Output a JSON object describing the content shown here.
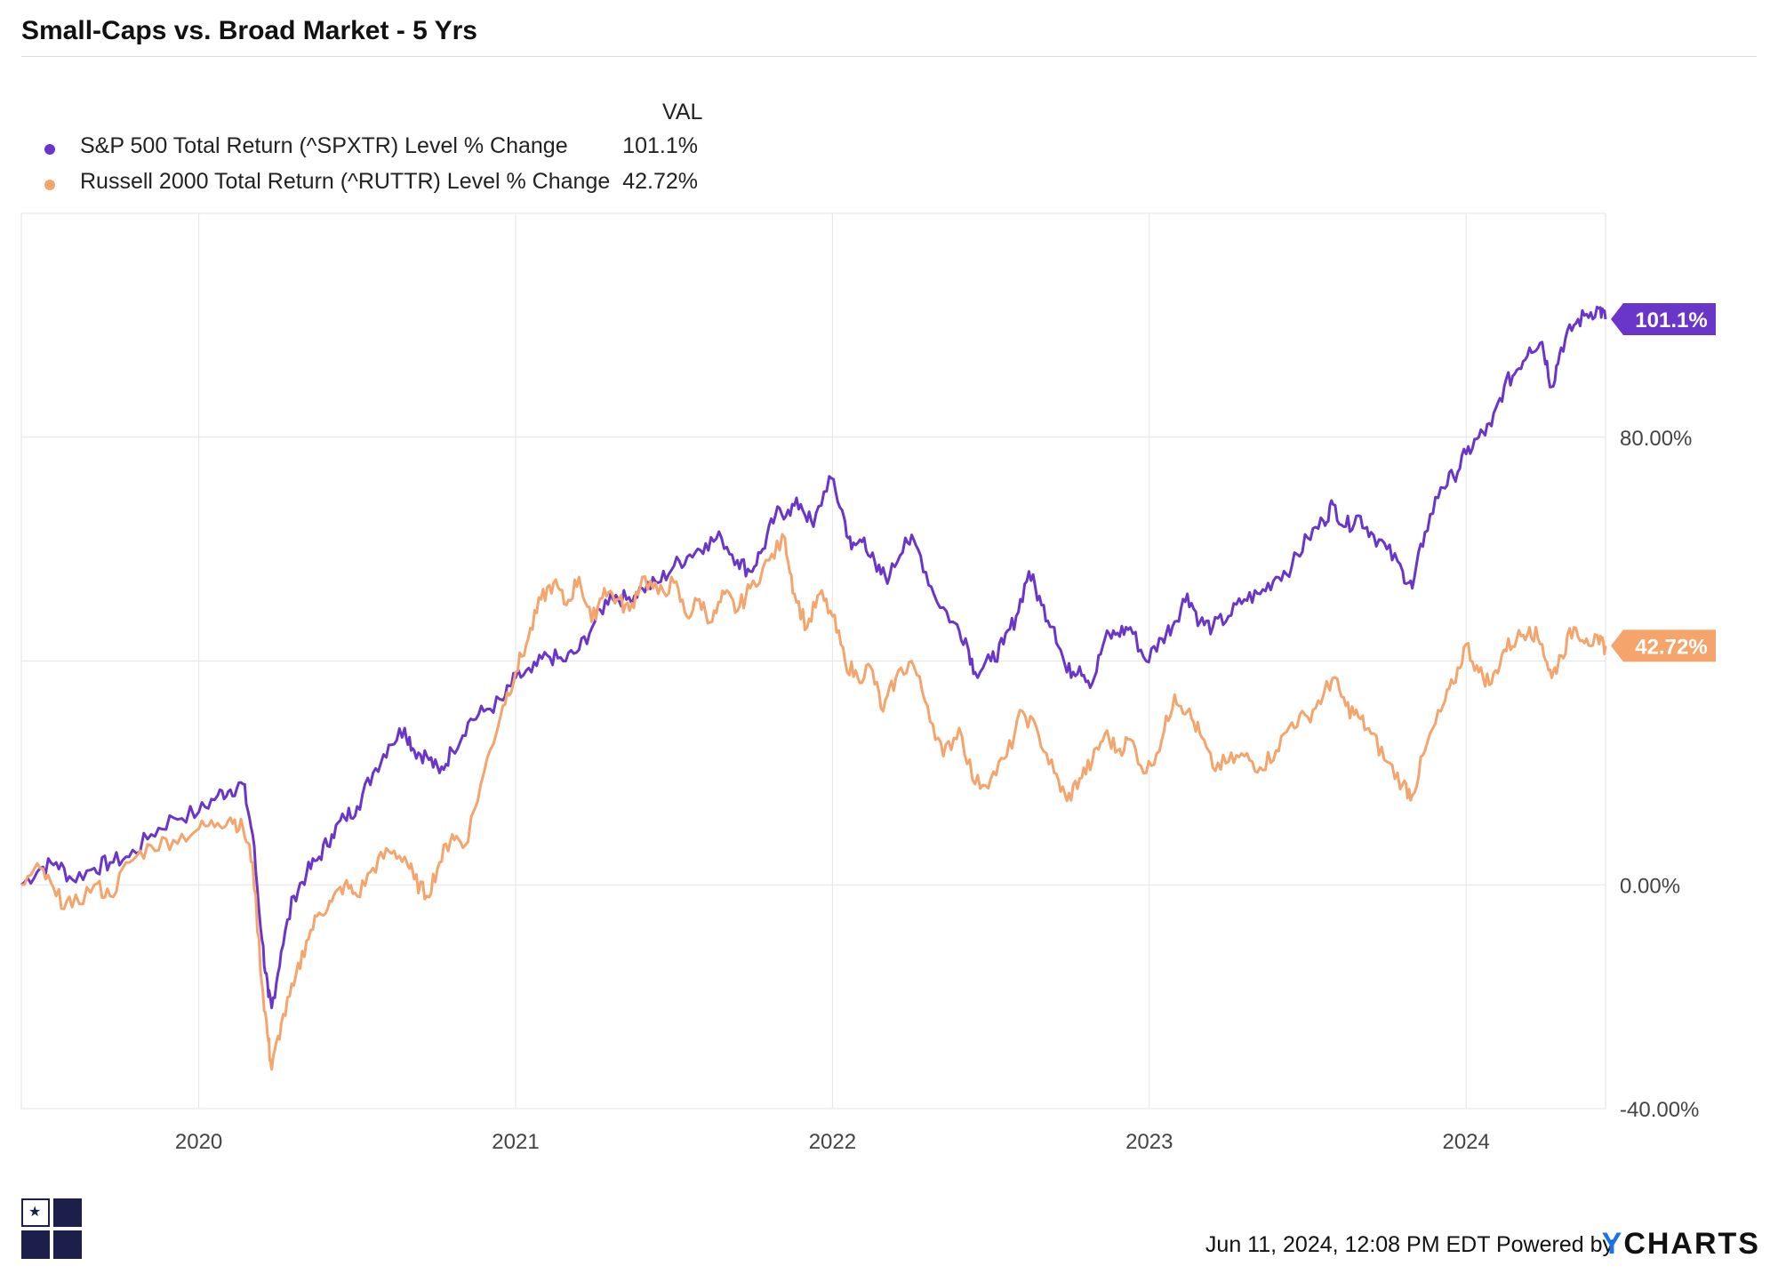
{
  "title": "Small-Caps vs. Broad Market - 5 Yrs",
  "legend": {
    "header": "VAL",
    "rows": [
      {
        "label": "S&P 500 Total Return (^SPXTR) Level % Change",
        "value": "101.1%",
        "color": "#6a35c9"
      },
      {
        "label": "Russell 2000 Total Return (^RUTTR) Level % Change",
        "value": "42.72%",
        "color": "#f5a46c"
      }
    ]
  },
  "chart_data": {
    "type": "line",
    "title": "Small-Caps vs. Broad Market - 5 Yrs",
    "xlabel": "",
    "ylabel": "",
    "x_ticks": [
      "2020",
      "2021",
      "2022",
      "2023",
      "2024"
    ],
    "y_ticks": [
      "80.00%",
      "0.00%",
      "-40.00%"
    ],
    "ylim": [
      -40,
      120
    ],
    "xlim": [
      2019.44,
      2024.44
    ],
    "grid": true,
    "series": [
      {
        "name": "S&P 500 Total Return (^SPXTR) Level % Change",
        "color": "#6a35c9",
        "end_label": "101.1%",
        "points": [
          [
            2019.44,
            0
          ],
          [
            2019.5,
            3
          ],
          [
            2019.55,
            4
          ],
          [
            2019.6,
            1
          ],
          [
            2019.67,
            3
          ],
          [
            2019.72,
            4
          ],
          [
            2019.78,
            5
          ],
          [
            2019.85,
            9
          ],
          [
            2019.92,
            12
          ],
          [
            2020.0,
            13
          ],
          [
            2020.06,
            16
          ],
          [
            2020.1,
            17
          ],
          [
            2020.14,
            18
          ],
          [
            2020.17,
            9
          ],
          [
            2020.2,
            -10
          ],
          [
            2020.22,
            -20
          ],
          [
            2020.23,
            -22
          ],
          [
            2020.26,
            -12
          ],
          [
            2020.3,
            -2
          ],
          [
            2020.34,
            2
          ],
          [
            2020.38,
            5
          ],
          [
            2020.42,
            9
          ],
          [
            2020.46,
            12
          ],
          [
            2020.5,
            14
          ],
          [
            2020.55,
            20
          ],
          [
            2020.6,
            25
          ],
          [
            2020.65,
            28
          ],
          [
            2020.68,
            24
          ],
          [
            2020.72,
            23
          ],
          [
            2020.76,
            20
          ],
          [
            2020.8,
            24
          ],
          [
            2020.85,
            29
          ],
          [
            2020.9,
            31
          ],
          [
            2020.96,
            33
          ],
          [
            2021.0,
            37
          ],
          [
            2021.05,
            38
          ],
          [
            2021.1,
            41
          ],
          [
            2021.15,
            40
          ],
          [
            2021.2,
            42
          ],
          [
            2021.25,
            47
          ],
          [
            2021.3,
            52
          ],
          [
            2021.35,
            51
          ],
          [
            2021.4,
            53
          ],
          [
            2021.45,
            54
          ],
          [
            2021.5,
            57
          ],
          [
            2021.55,
            59
          ],
          [
            2021.6,
            61
          ],
          [
            2021.65,
            62
          ],
          [
            2021.7,
            58
          ],
          [
            2021.74,
            56
          ],
          [
            2021.78,
            60
          ],
          [
            2021.82,
            66
          ],
          [
            2021.86,
            67
          ],
          [
            2021.9,
            68
          ],
          [
            2021.94,
            64
          ],
          [
            2021.99,
            73
          ],
          [
            2022.03,
            67
          ],
          [
            2022.06,
            60
          ],
          [
            2022.1,
            62
          ],
          [
            2022.14,
            56
          ],
          [
            2022.18,
            55
          ],
          [
            2022.23,
            62
          ],
          [
            2022.27,
            60
          ],
          [
            2022.32,
            52
          ],
          [
            2022.38,
            47
          ],
          [
            2022.42,
            44
          ],
          [
            2022.45,
            38
          ],
          [
            2022.5,
            40
          ],
          [
            2022.54,
            43
          ],
          [
            2022.58,
            48
          ],
          [
            2022.62,
            56
          ],
          [
            2022.66,
            50
          ],
          [
            2022.7,
            46
          ],
          [
            2022.74,
            38
          ],
          [
            2022.78,
            39
          ],
          [
            2022.82,
            36
          ],
          [
            2022.86,
            44
          ],
          [
            2022.9,
            45
          ],
          [
            2022.94,
            46
          ],
          [
            2022.99,
            40
          ],
          [
            2023.04,
            44
          ],
          [
            2023.08,
            47
          ],
          [
            2023.12,
            52
          ],
          [
            2023.16,
            47
          ],
          [
            2023.2,
            46
          ],
          [
            2023.25,
            48
          ],
          [
            2023.3,
            51
          ],
          [
            2023.35,
            52
          ],
          [
            2023.4,
            55
          ],
          [
            2023.45,
            57
          ],
          [
            2023.5,
            62
          ],
          [
            2023.55,
            65
          ],
          [
            2023.58,
            68
          ],
          [
            2023.62,
            64
          ],
          [
            2023.66,
            66
          ],
          [
            2023.7,
            63
          ],
          [
            2023.75,
            60
          ],
          [
            2023.8,
            56
          ],
          [
            2023.83,
            53
          ],
          [
            2023.87,
            63
          ],
          [
            2023.92,
            71
          ],
          [
            2023.96,
            73
          ],
          [
            2024.0,
            77
          ],
          [
            2024.04,
            80
          ],
          [
            2024.08,
            82
          ],
          [
            2024.12,
            89
          ],
          [
            2024.16,
            92
          ],
          [
            2024.2,
            96
          ],
          [
            2024.24,
            97
          ],
          [
            2024.27,
            89
          ],
          [
            2024.3,
            96
          ],
          [
            2024.34,
            100
          ],
          [
            2024.38,
            102
          ],
          [
            2024.42,
            103
          ],
          [
            2024.44,
            101.1
          ]
        ]
      },
      {
        "name": "Russell 2000 Total Return (^RUTTR) Level % Change",
        "color": "#f5a46c",
        "end_label": "42.72%",
        "points": [
          [
            2019.44,
            0
          ],
          [
            2019.5,
            3
          ],
          [
            2019.55,
            -2
          ],
          [
            2019.6,
            -4
          ],
          [
            2019.67,
            0
          ],
          [
            2019.72,
            -2
          ],
          [
            2019.78,
            4
          ],
          [
            2019.85,
            7
          ],
          [
            2019.92,
            8
          ],
          [
            2020.0,
            10
          ],
          [
            2020.06,
            11
          ],
          [
            2020.1,
            12
          ],
          [
            2020.14,
            10
          ],
          [
            2020.17,
            4
          ],
          [
            2020.2,
            -18
          ],
          [
            2020.22,
            -28
          ],
          [
            2020.23,
            -33
          ],
          [
            2020.26,
            -25
          ],
          [
            2020.3,
            -18
          ],
          [
            2020.34,
            -10
          ],
          [
            2020.38,
            -5
          ],
          [
            2020.42,
            -3
          ],
          [
            2020.46,
            0
          ],
          [
            2020.5,
            -2
          ],
          [
            2020.55,
            3
          ],
          [
            2020.6,
            6
          ],
          [
            2020.65,
            5
          ],
          [
            2020.68,
            1
          ],
          [
            2020.72,
            -2
          ],
          [
            2020.76,
            4
          ],
          [
            2020.8,
            9
          ],
          [
            2020.84,
            7
          ],
          [
            2020.9,
            20
          ],
          [
            2020.96,
            32
          ],
          [
            2021.0,
            38
          ],
          [
            2021.04,
            44
          ],
          [
            2021.08,
            51
          ],
          [
            2021.12,
            54
          ],
          [
            2021.16,
            50
          ],
          [
            2021.2,
            55
          ],
          [
            2021.24,
            47
          ],
          [
            2021.28,
            53
          ],
          [
            2021.32,
            51
          ],
          [
            2021.36,
            49
          ],
          [
            2021.4,
            55
          ],
          [
            2021.45,
            52
          ],
          [
            2021.5,
            54
          ],
          [
            2021.54,
            48
          ],
          [
            2021.58,
            51
          ],
          [
            2021.62,
            47
          ],
          [
            2021.66,
            52
          ],
          [
            2021.7,
            49
          ],
          [
            2021.74,
            53
          ],
          [
            2021.8,
            58
          ],
          [
            2021.85,
            62
          ],
          [
            2021.88,
            52
          ],
          [
            2021.92,
            46
          ],
          [
            2021.96,
            52
          ],
          [
            2022.0,
            48
          ],
          [
            2022.04,
            40
          ],
          [
            2022.08,
            37
          ],
          [
            2022.12,
            39
          ],
          [
            2022.16,
            31
          ],
          [
            2022.2,
            37
          ],
          [
            2022.25,
            40
          ],
          [
            2022.3,
            32
          ],
          [
            2022.35,
            23
          ],
          [
            2022.4,
            28
          ],
          [
            2022.45,
            18
          ],
          [
            2022.5,
            19
          ],
          [
            2022.55,
            23
          ],
          [
            2022.6,
            31
          ],
          [
            2022.65,
            27
          ],
          [
            2022.7,
            20
          ],
          [
            2022.74,
            15
          ],
          [
            2022.78,
            19
          ],
          [
            2022.82,
            22
          ],
          [
            2022.86,
            27
          ],
          [
            2022.9,
            24
          ],
          [
            2022.94,
            26
          ],
          [
            2022.99,
            20
          ],
          [
            2023.04,
            26
          ],
          [
            2023.08,
            34
          ],
          [
            2023.12,
            31
          ],
          [
            2023.16,
            27
          ],
          [
            2023.2,
            21
          ],
          [
            2023.25,
            22
          ],
          [
            2023.3,
            23
          ],
          [
            2023.35,
            21
          ],
          [
            2023.4,
            24
          ],
          [
            2023.45,
            29
          ],
          [
            2023.5,
            30
          ],
          [
            2023.55,
            34
          ],
          [
            2023.58,
            37
          ],
          [
            2023.62,
            32
          ],
          [
            2023.66,
            30
          ],
          [
            2023.7,
            27
          ],
          [
            2023.75,
            22
          ],
          [
            2023.8,
            18
          ],
          [
            2023.83,
            16
          ],
          [
            2023.87,
            24
          ],
          [
            2023.92,
            31
          ],
          [
            2023.96,
            36
          ],
          [
            2024.0,
            43
          ],
          [
            2024.04,
            38
          ],
          [
            2024.08,
            36
          ],
          [
            2024.12,
            42
          ],
          [
            2024.16,
            44
          ],
          [
            2024.2,
            46
          ],
          [
            2024.24,
            43
          ],
          [
            2024.27,
            37
          ],
          [
            2024.3,
            41
          ],
          [
            2024.34,
            46
          ],
          [
            2024.38,
            44
          ],
          [
            2024.42,
            43
          ],
          [
            2024.44,
            42.72
          ]
        ]
      }
    ]
  },
  "footer": {
    "timestamp": "Jun 11, 2024, 12:08 PM EDT Powered by",
    "logo_y": "Y",
    "logo_rest": "CHARTS"
  }
}
